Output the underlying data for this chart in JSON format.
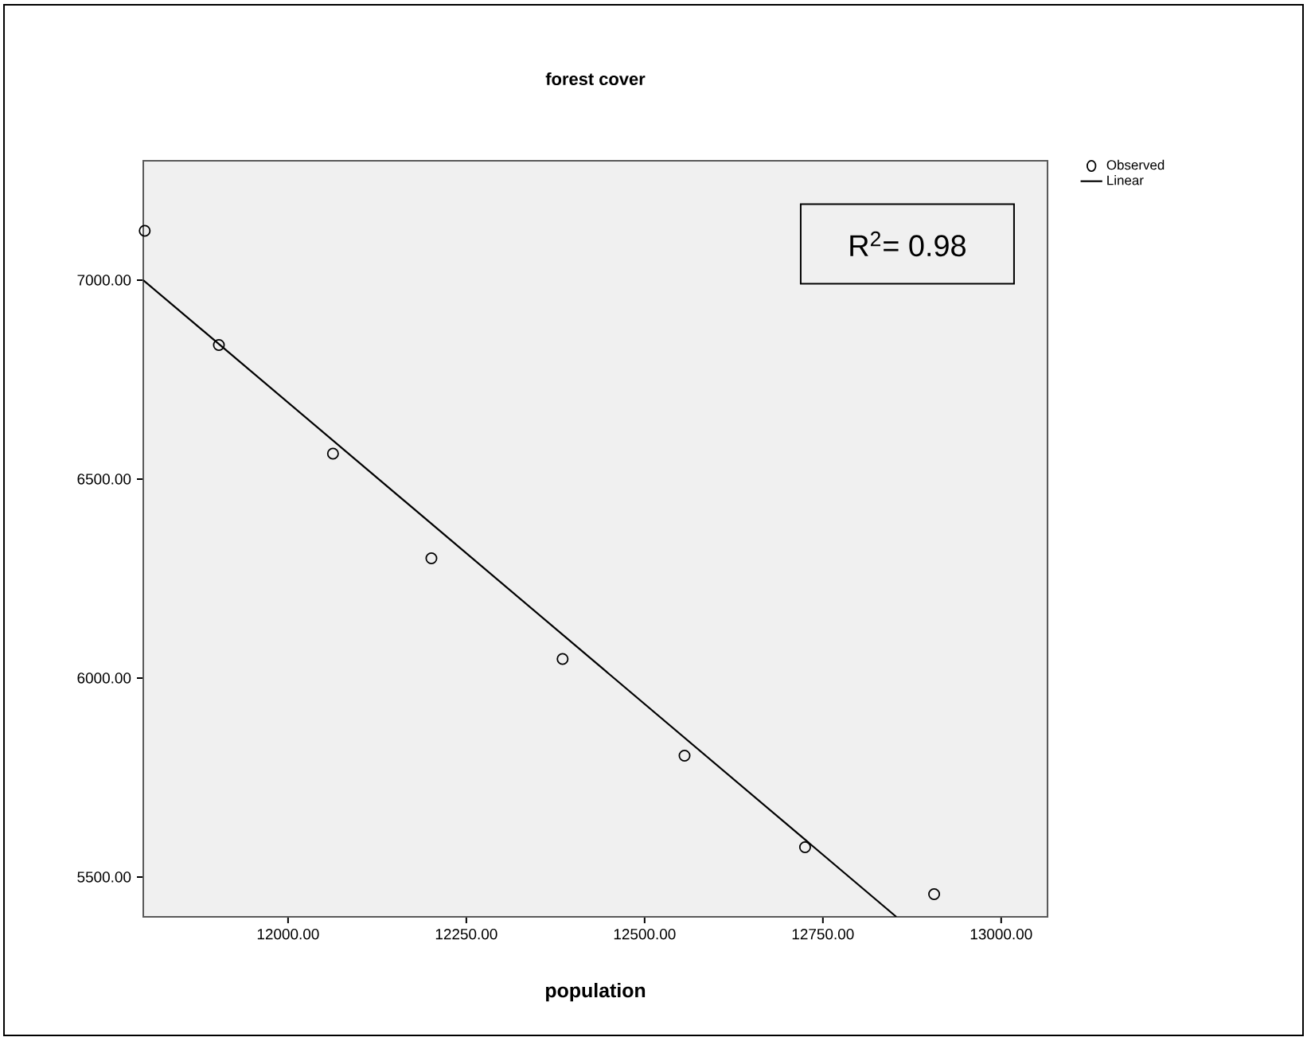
{
  "chart_data": {
    "type": "scatter",
    "title": "forest cover",
    "xlabel": "population",
    "xlim": [
      11797,
      13065
    ],
    "ylim": [
      5400,
      7300
    ],
    "xticks": [
      {
        "value": 12000,
        "label": "12000.00"
      },
      {
        "value": 12250,
        "label": "12250.00"
      },
      {
        "value": 12500,
        "label": "12500.00"
      },
      {
        "value": 12750,
        "label": "12750.00"
      },
      {
        "value": 13000,
        "label": "13000.00"
      }
    ],
    "yticks": [
      {
        "value": 5500,
        "label": "5500.00"
      },
      {
        "value": 6000,
        "label": "6000.00"
      },
      {
        "value": 6500,
        "label": "6500.00"
      },
      {
        "value": 7000,
        "label": "7000.00"
      }
    ],
    "legend": "top right",
    "annotations": [
      "R$^{2}$= 0.98"
    ],
    "series": [
      {
        "name": "Observed",
        "type": "scatter",
        "marker": "circle",
        "color": "#000000",
        "x": [
          11799,
          11903,
          12063,
          12201,
          12385,
          12556,
          12725,
          12906
        ],
        "values": [
          7124,
          6837,
          6564,
          6301,
          6048,
          5805,
          5575,
          5457
        ]
      },
      {
        "name": "Linear",
        "type": "line",
        "line_style": "solid",
        "color": "#000000",
        "x": [
          11797,
          12853
        ],
        "values": [
          7000,
          5400
        ]
      }
    ]
  }
}
